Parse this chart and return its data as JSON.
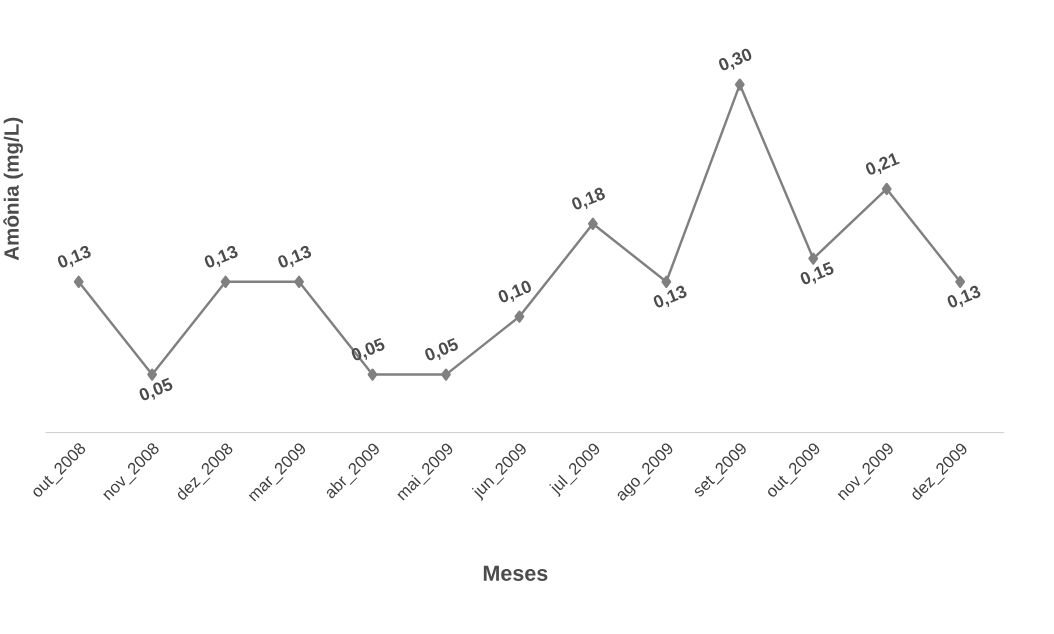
{
  "chart_data": {
    "type": "line",
    "xlabel": "Meses",
    "ylabel": "Amônia (mg/L)",
    "categories": [
      "out_2008",
      "nov_2008",
      "dez_2008",
      "mar_2009",
      "abr_2009",
      "mai_2009",
      "jun_2009",
      "jul_2009",
      "ago_2009",
      "set_2009",
      "out_2009",
      "nov_2009",
      "dez_2009"
    ],
    "series": [
      {
        "color": "#808080",
        "values": [
          0.13,
          0.05,
          0.13,
          0.13,
          0.05,
          0.05,
          0.1,
          0.18,
          0.13,
          0.3,
          0.15,
          0.21,
          0.13
        ],
        "value_labels": [
          "0,13",
          "0,05",
          "0,13",
          "0,13",
          "0,05",
          "0,05",
          "0,10",
          "0,18",
          "0,13",
          "0,30",
          "0,15",
          "0,21",
          "0,13"
        ]
      }
    ],
    "marker": "diamond",
    "line_style": "solid"
  }
}
